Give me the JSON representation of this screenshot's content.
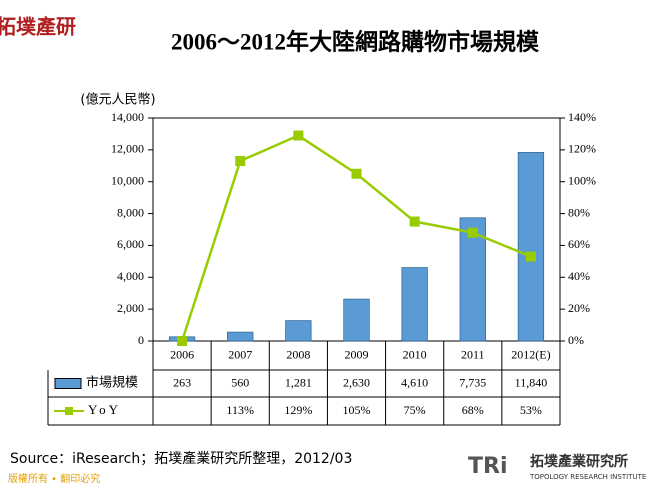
{
  "logo": "拓墣產研",
  "chart_data": {
    "type": "bar-line",
    "title": "2006～2012年大陸網路購物市場規模",
    "y_label": "(億元人民幣)",
    "categories": [
      "2006",
      "2007",
      "2008",
      "2009",
      "2010",
      "2011",
      "2012(E)"
    ],
    "series": [
      {
        "name": "市場規模",
        "type": "bar",
        "color": "#5b9bd5",
        "values": [
          263,
          560,
          1281,
          2630,
          4610,
          7735,
          11840
        ],
        "value_labels": [
          "263",
          "560",
          "1,281",
          "2,630",
          "4,610",
          "7,735",
          "11,840"
        ]
      },
      {
        "name": "YoY",
        "type": "line",
        "axis": "y2",
        "color": "#99cc00",
        "values": [
          0,
          113,
          129,
          105,
          75,
          68,
          53
        ],
        "value_labels": [
          null,
          "113%",
          "129%",
          "105%",
          "75%",
          "68%",
          "53%"
        ]
      }
    ],
    "ylim": [
      0,
      14000
    ],
    "yticks": [
      0,
      {
        "value": 2000,
        "label": "2,000"
      },
      {
        "value": 4000,
        "label": "4,000"
      },
      {
        "value": 6000,
        "label": "6,000"
      },
      {
        "value": 8000,
        "label": "8,000"
      },
      {
        "value": 10000,
        "label": "10,000"
      },
      {
        "value": 12000,
        "label": "12,000"
      },
      {
        "value": 14000,
        "label": "14,000"
      }
    ],
    "y2lim": [
      0,
      140
    ],
    "y2ticks": [
      {
        "value": 0,
        "label": "0%"
      },
      {
        "value": 20,
        "label": "20%"
      },
      {
        "value": 40,
        "label": "40%"
      },
      {
        "value": 60,
        "label": "60%"
      },
      {
        "value": 80,
        "label": "80%"
      },
      {
        "value": 100,
        "label": "100%"
      },
      {
        "value": 120,
        "label": "120%"
      },
      {
        "value": 140,
        "label": "140%"
      }
    ],
    "source": "Source：iResearch；拓墣產業研究所整理，2012/03"
  },
  "footer": {
    "copyright": "版權所有 • 翻印必究",
    "brand": "TRi",
    "org_name": "拓墣產業研究所",
    "org_english": "TOPOLOGY RESEARCH INSTITUTE"
  }
}
